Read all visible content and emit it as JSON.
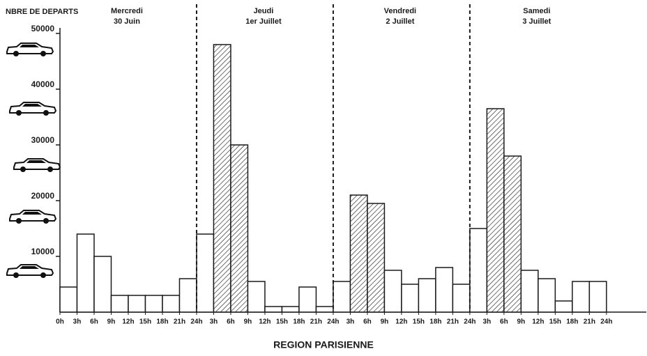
{
  "chart_data": {
    "type": "histogram",
    "ylabel": "NBRE DE DEPARTS",
    "title": "REGION PARISIENNE",
    "days": [
      {
        "name": "Mercredi",
        "date": "30 Juin"
      },
      {
        "name": "Jeudi",
        "date": "1er Juillet"
      },
      {
        "name": "Vendredi",
        "date": "2 Juillet"
      },
      {
        "name": "Samedi",
        "date": "3 Juillet"
      }
    ],
    "bins": [
      0,
      3,
      6,
      9,
      12,
      15,
      18,
      21,
      24,
      27,
      30,
      33,
      36,
      39,
      42,
      45,
      48,
      51,
      54,
      57,
      60,
      63,
      66,
      69,
      72,
      75,
      78,
      81,
      84,
      87,
      90,
      93,
      96
    ],
    "values": [
      4500,
      14000,
      10000,
      3000,
      3000,
      3000,
      3000,
      6000,
      14000,
      48000,
      30000,
      5500,
      1000,
      1000,
      4500,
      1000,
      5500,
      21000,
      19500,
      7500,
      5000,
      6000,
      8000,
      5000,
      15000,
      36500,
      28000,
      7500,
      6000,
      2000,
      5500,
      5500
    ],
    "hatched": [
      false,
      false,
      false,
      false,
      false,
      false,
      false,
      false,
      false,
      true,
      true,
      false,
      false,
      false,
      false,
      false,
      false,
      true,
      true,
      false,
      false,
      false,
      false,
      false,
      false,
      true,
      true,
      false,
      false,
      false,
      false,
      false
    ],
    "color": "#1a1a1a",
    "xlim": [
      0,
      103
    ],
    "ylim": [
      0,
      51000
    ],
    "yticks": [
      10000,
      20000,
      30000,
      40000,
      50000
    ],
    "dividers": [
      24,
      48,
      72
    ],
    "xticks": [
      {
        "value": 0,
        "label": "0h"
      },
      {
        "value": 3,
        "label": "3h"
      },
      {
        "value": 6,
        "label": "6h"
      },
      {
        "value": 9,
        "label": "9h"
      },
      {
        "value": 12,
        "label": "12h"
      },
      {
        "value": 15,
        "label": "15h"
      },
      {
        "value": 18,
        "label": "18h"
      },
      {
        "value": 21,
        "label": "21h"
      },
      {
        "value": 24,
        "label": "24h"
      },
      {
        "value": 27,
        "label": "3h"
      },
      {
        "value": 30,
        "label": "6h"
      },
      {
        "value": 33,
        "label": "9h"
      },
      {
        "value": 36,
        "label": "12h"
      },
      {
        "value": 39,
        "label": "15h"
      },
      {
        "value": 42,
        "label": "18h"
      },
      {
        "value": 45,
        "label": "21h"
      },
      {
        "value": 48,
        "label": "24h"
      },
      {
        "value": 51,
        "label": "3h"
      },
      {
        "value": 54,
        "label": "6h"
      },
      {
        "value": 57,
        "label": "9h"
      },
      {
        "value": 60,
        "label": "12h"
      },
      {
        "value": 63,
        "label": "15h"
      },
      {
        "value": 66,
        "label": "18h"
      },
      {
        "value": 69,
        "label": "21h"
      },
      {
        "value": 72,
        "label": "24h"
      },
      {
        "value": 75,
        "label": "3h"
      },
      {
        "value": 78,
        "label": "6h"
      },
      {
        "value": 81,
        "label": "9h"
      },
      {
        "value": 84,
        "label": "12h"
      },
      {
        "value": 87,
        "label": "15h"
      },
      {
        "value": 90,
        "label": "18h"
      },
      {
        "value": 93,
        "label": "21h"
      },
      {
        "value": 96,
        "label": "24h"
      }
    ]
  }
}
